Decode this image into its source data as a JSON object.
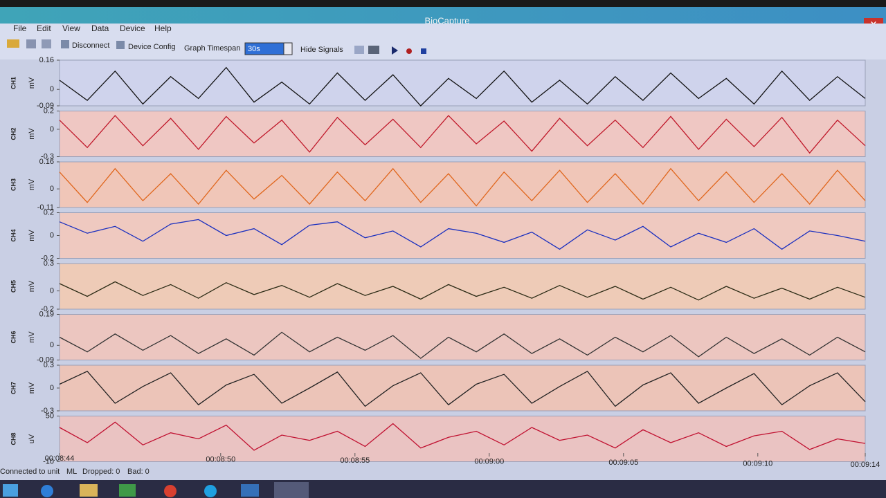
{
  "window": {
    "title": "BioCapture"
  },
  "menu": [
    "File",
    "Edit",
    "View",
    "Data",
    "Device",
    "Help"
  ],
  "toolbar": {
    "disconnect": "Disconnect",
    "device_config": "Device Config",
    "timespan_label": "Graph Timespan",
    "timespan_value": "30s",
    "hide_signals": "Hide Signals"
  },
  "status": [
    "Connected to unit",
    "ML",
    "Dropped: 0",
    "Bad: 0"
  ],
  "time_axis": {
    "xlim": [
      "00:08:44",
      "00:09:14"
    ],
    "xticks": [
      "00:08:44",
      "00:08:50",
      "00:08:55",
      "00:09:00",
      "00:09:05",
      "00:09:10",
      "00:09:14"
    ]
  },
  "chart_data": [
    {
      "type": "line",
      "name": "CH1",
      "unit": "mV",
      "color": "#111111",
      "ylim": [
        -0.09,
        0.16
      ],
      "yticks": [
        0.16,
        0,
        -0.09
      ],
      "values": [
        0.05,
        -0.06,
        0.1,
        -0.08,
        0.07,
        -0.05,
        0.12,
        -0.07,
        0.04,
        -0.08,
        0.09,
        -0.06,
        0.08,
        -0.09,
        0.06,
        -0.05,
        0.1,
        -0.07,
        0.05,
        -0.08,
        0.07,
        -0.06,
        0.09,
        -0.05,
        0.06,
        -0.08,
        0.1,
        -0.06,
        0.07,
        -0.05
      ]
    },
    {
      "type": "line",
      "name": "CH2",
      "unit": "mV",
      "color": "#c0182a",
      "ylim": [
        -0.3,
        0.2
      ],
      "yticks": [
        0.2,
        0,
        -0.3
      ],
      "values": [
        0.1,
        -0.2,
        0.15,
        -0.18,
        0.12,
        -0.22,
        0.14,
        -0.15,
        0.1,
        -0.25,
        0.13,
        -0.17,
        0.11,
        -0.2,
        0.15,
        -0.16,
        0.09,
        -0.24,
        0.12,
        -0.18,
        0.1,
        -0.2,
        0.14,
        -0.22,
        0.11,
        -0.19,
        0.13,
        -0.26,
        0.1,
        -0.18
      ]
    },
    {
      "type": "line",
      "name": "CH3",
      "unit": "mV",
      "color": "#e0661c",
      "ylim": [
        -0.11,
        0.16
      ],
      "yticks": [
        0.16,
        0,
        -0.11
      ],
      "values": [
        0.1,
        -0.08,
        0.12,
        -0.07,
        0.09,
        -0.09,
        0.11,
        -0.06,
        0.08,
        -0.09,
        0.1,
        -0.07,
        0.12,
        -0.08,
        0.09,
        -0.1,
        0.1,
        -0.07,
        0.11,
        -0.08,
        0.09,
        -0.09,
        0.12,
        -0.07,
        0.1,
        -0.08,
        0.09,
        -0.09,
        0.11,
        -0.07
      ]
    },
    {
      "type": "line",
      "name": "CH4",
      "unit": "mV",
      "color": "#1a2fbf",
      "ylim": [
        -0.2,
        0.2
      ],
      "yticks": [
        0.2,
        0,
        -0.2
      ],
      "values": [
        0.12,
        0.02,
        0.08,
        -0.05,
        0.1,
        0.14,
        0.0,
        0.06,
        -0.08,
        0.09,
        0.12,
        -0.02,
        0.04,
        -0.1,
        0.06,
        0.02,
        -0.06,
        0.03,
        -0.12,
        0.05,
        -0.04,
        0.08,
        -0.1,
        0.02,
        -0.06,
        0.06,
        -0.12,
        0.04,
        0.0,
        -0.05
      ]
    },
    {
      "type": "line",
      "name": "CH5",
      "unit": "mV",
      "color": "#2a2a14",
      "ylim": [
        -0.2,
        0.3
      ],
      "yticks": [
        0.3,
        0,
        -0.2
      ],
      "values": [
        0.08,
        -0.06,
        0.1,
        -0.05,
        0.07,
        -0.08,
        0.09,
        -0.04,
        0.06,
        -0.07,
        0.08,
        -0.05,
        0.05,
        -0.09,
        0.07,
        -0.06,
        0.04,
        -0.08,
        0.06,
        -0.07,
        0.05,
        -0.09,
        0.04,
        -0.1,
        0.05,
        -0.08,
        0.03,
        -0.09,
        0.04,
        -0.07
      ]
    },
    {
      "type": "line",
      "name": "CH6",
      "unit": "mV",
      "color": "#333333",
      "ylim": [
        -0.09,
        0.19
      ],
      "yticks": [
        0.19,
        0,
        -0.09
      ],
      "values": [
        0.05,
        -0.04,
        0.07,
        -0.03,
        0.06,
        -0.05,
        0.04,
        -0.06,
        0.08,
        -0.04,
        0.05,
        -0.03,
        0.06,
        -0.08,
        0.05,
        -0.04,
        0.07,
        -0.05,
        0.04,
        -0.06,
        0.05,
        -0.04,
        0.06,
        -0.07,
        0.05,
        -0.05,
        0.04,
        -0.06,
        0.05,
        -0.04
      ]
    },
    {
      "type": "line",
      "name": "CH7",
      "unit": "mV",
      "color": "#222222",
      "ylim": [
        -0.3,
        0.3
      ],
      "yticks": [
        0.3,
        0,
        -0.3
      ],
      "values": [
        0.05,
        0.22,
        -0.2,
        0.02,
        0.2,
        -0.22,
        0.04,
        0.18,
        -0.2,
        0.0,
        0.21,
        -0.24,
        0.03,
        0.2,
        -0.22,
        0.05,
        0.18,
        -0.2,
        0.02,
        0.22,
        -0.24,
        0.04,
        0.2,
        -0.2,
        0.0,
        0.19,
        -0.22,
        0.03,
        0.2,
        -0.18
      ]
    },
    {
      "type": "line",
      "name": "CH8",
      "unit": "uV",
      "color": "#c01030",
      "ylim": [
        -10,
        50
      ],
      "yticks": [
        50,
        -10
      ],
      "values": [
        35,
        15,
        42,
        12,
        28,
        20,
        38,
        5,
        25,
        18,
        30,
        10,
        40,
        8,
        22,
        30,
        12,
        35,
        18,
        25,
        8,
        32,
        15,
        28,
        10,
        24,
        30,
        6,
        20,
        14
      ]
    }
  ]
}
